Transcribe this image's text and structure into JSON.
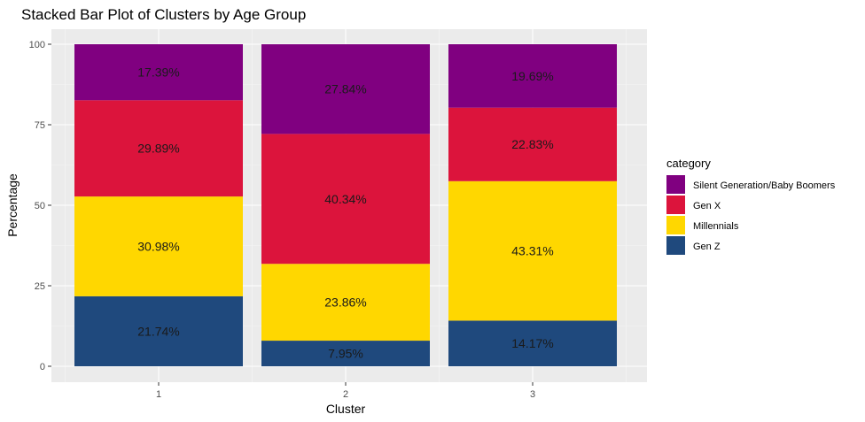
{
  "chart_data": {
    "type": "bar",
    "stacked": true,
    "title": "Stacked Bar Plot of Clusters by Age Group",
    "xlabel": "Cluster",
    "ylabel": "Percentage",
    "ylim": [
      0,
      100
    ],
    "yticks": [
      0,
      25,
      50,
      75,
      100
    ],
    "categories": [
      "1",
      "2",
      "3"
    ],
    "legend": {
      "title": "category",
      "position": "right"
    },
    "series": [
      {
        "name": "Gen Z",
        "color": "#1f497d",
        "values": [
          21.74,
          7.95,
          14.17
        ],
        "labels": [
          "21.74%",
          "7.95%",
          "14.17%"
        ]
      },
      {
        "name": "Millennials",
        "color": "#ffd700",
        "values": [
          30.98,
          23.86,
          43.31
        ],
        "labels": [
          "30.98%",
          "23.86%",
          "43.31%"
        ]
      },
      {
        "name": "Gen X",
        "color": "#dc143c",
        "values": [
          29.89,
          40.34,
          22.83
        ],
        "labels": [
          "29.89%",
          "40.34%",
          "22.83%"
        ]
      },
      {
        "name": "Silent Generation/Baby Boomers",
        "color": "#800080",
        "values": [
          17.39,
          27.84,
          19.69
        ],
        "labels": [
          "17.39%",
          "27.84%",
          "19.69%"
        ]
      }
    ],
    "legend_order": [
      "Silent Generation/Baby Boomers",
      "Gen X",
      "Millennials",
      "Gen Z"
    ],
    "panel_background": "#ebebeb",
    "grid": true
  }
}
